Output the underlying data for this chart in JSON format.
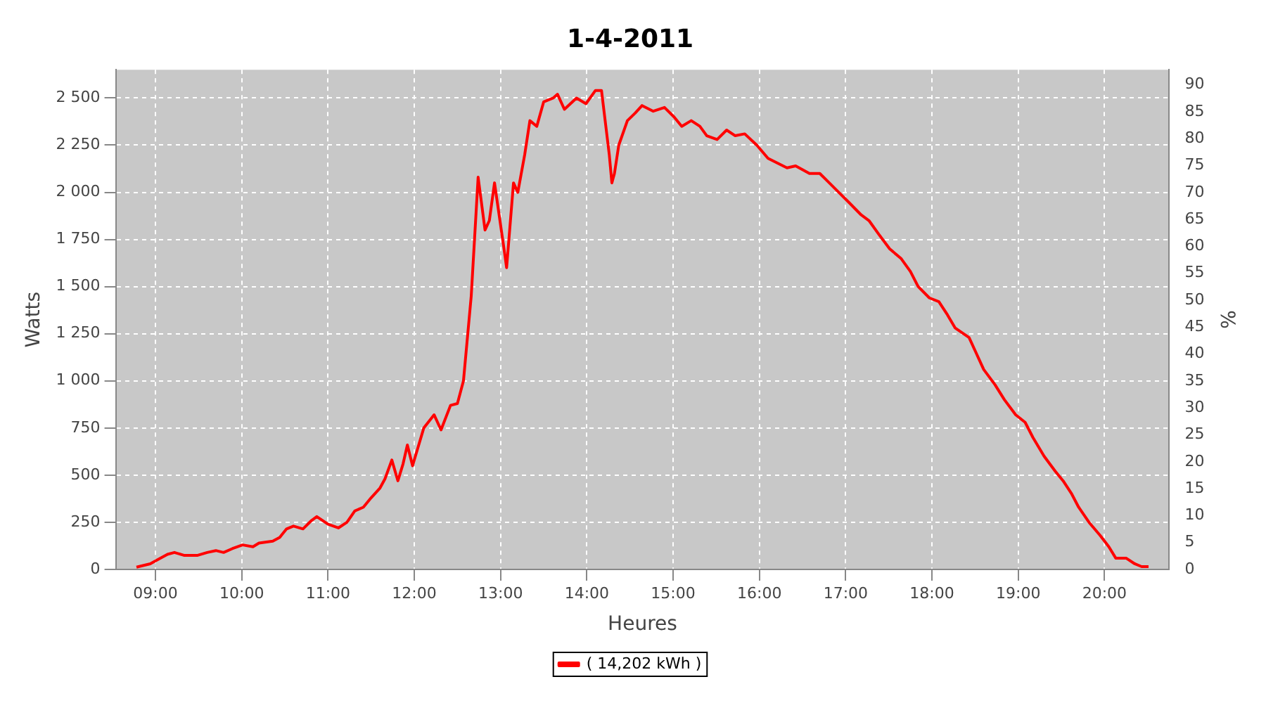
{
  "chart_data": {
    "type": "line",
    "title": "1-4-2011",
    "xlabel": "Heures",
    "ylabel": "Watts",
    "y2label": "%",
    "series": [
      {
        "name": "( 14,202 kWh )",
        "color": "#ff0000",
        "x": [
          8.78,
          8.94,
          9.02,
          9.14,
          9.22,
          9.33,
          9.49,
          9.6,
          9.7,
          9.79,
          9.89,
          10.01,
          10.13,
          10.2,
          10.36,
          10.44,
          10.52,
          10.6,
          10.71,
          10.81,
          10.87,
          11.0,
          11.12,
          11.22,
          11.31,
          11.41,
          11.5,
          11.6,
          11.66,
          11.74,
          11.81,
          11.87,
          11.92,
          11.98,
          12.11,
          12.23,
          12.31,
          12.42,
          12.5,
          12.57,
          12.61,
          12.66,
          12.74,
          12.82,
          12.87,
          12.93,
          13.04,
          13.07,
          13.15,
          13.2,
          13.28,
          13.34,
          13.42,
          13.5,
          13.61,
          13.66,
          13.74,
          13.88,
          13.99,
          14.1,
          14.17,
          14.26,
          14.29,
          14.32,
          14.37,
          14.47,
          14.56,
          14.64,
          14.77,
          14.9,
          15.01,
          15.1,
          15.21,
          15.31,
          15.39,
          15.51,
          15.62,
          15.72,
          15.83,
          15.97,
          16.1,
          16.23,
          16.32,
          16.42,
          16.58,
          16.7,
          16.81,
          16.92,
          17.03,
          17.18,
          17.27,
          17.38,
          17.51,
          17.64,
          17.75,
          17.84,
          17.97,
          18.08,
          18.18,
          18.27,
          18.43,
          18.51,
          18.6,
          18.73,
          18.84,
          18.97,
          19.08,
          19.17,
          19.3,
          19.43,
          19.52,
          19.62,
          19.7,
          19.82,
          19.95,
          20.05,
          20.13,
          20.25,
          20.35,
          20.43,
          20.51
        ],
        "values": [
          12,
          30,
          50,
          80,
          90,
          75,
          75,
          90,
          100,
          90,
          110,
          130,
          120,
          140,
          150,
          170,
          215,
          230,
          215,
          260,
          280,
          240,
          220,
          250,
          310,
          330,
          380,
          430,
          480,
          580,
          470,
          560,
          660,
          550,
          750,
          820,
          740,
          870,
          880,
          1000,
          1200,
          1450,
          2080,
          1800,
          1850,
          2050,
          1700,
          1600,
          2050,
          2000,
          2200,
          2380,
          2350,
          2480,
          2500,
          2520,
          2440,
          2500,
          2470,
          2540,
          2540,
          2200,
          2050,
          2100,
          2250,
          2380,
          2420,
          2460,
          2430,
          2450,
          2400,
          2350,
          2380,
          2350,
          2300,
          2280,
          2330,
          2300,
          2310,
          2250,
          2180,
          2150,
          2130,
          2140,
          2100,
          2100,
          2050,
          2000,
          1950,
          1880,
          1850,
          1780,
          1700,
          1650,
          1580,
          1500,
          1440,
          1420,
          1350,
          1280,
          1230,
          1150,
          1060,
          980,
          900,
          820,
          780,
          700,
          600,
          520,
          470,
          400,
          330,
          250,
          180,
          120,
          60,
          60,
          30,
          15,
          15
        ]
      }
    ],
    "xlim": [
      8.54,
      20.75
    ],
    "xticks": [
      {
        "value": 9,
        "label": "09:00"
      },
      {
        "value": 10,
        "label": "10:00"
      },
      {
        "value": 11,
        "label": "11:00"
      },
      {
        "value": 12,
        "label": "12:00"
      },
      {
        "value": 13,
        "label": "13:00"
      },
      {
        "value": 14,
        "label": "14:00"
      },
      {
        "value": 15,
        "label": "15:00"
      },
      {
        "value": 16,
        "label": "16:00"
      },
      {
        "value": 17,
        "label": "17:00"
      },
      {
        "value": 18,
        "label": "18:00"
      },
      {
        "value": 19,
        "label": "19:00"
      },
      {
        "value": 20,
        "label": "20:00"
      }
    ],
    "ylim": [
      0,
      2650
    ],
    "yticks": [
      0,
      250,
      500,
      750,
      {
        "value": 1000,
        "label": "1 000"
      },
      {
        "value": 1250,
        "label": "1 250"
      },
      {
        "value": 1500,
        "label": "1 500"
      },
      {
        "value": 1750,
        "label": "1 750"
      },
      {
        "value": 2000,
        "label": "2 000"
      },
      {
        "value": 2250,
        "label": "2 250"
      },
      {
        "value": 2500,
        "label": "2 500"
      }
    ],
    "y2lim": [
      0,
      92.8
    ],
    "y2ticks": [
      0,
      5,
      10,
      15,
      20,
      25,
      30,
      35,
      40,
      45,
      50,
      55,
      60,
      65,
      70,
      75,
      80,
      85,
      90
    ],
    "grid": true,
    "legend": "bottom",
    "marker": "none",
    "line_style": "solid"
  }
}
